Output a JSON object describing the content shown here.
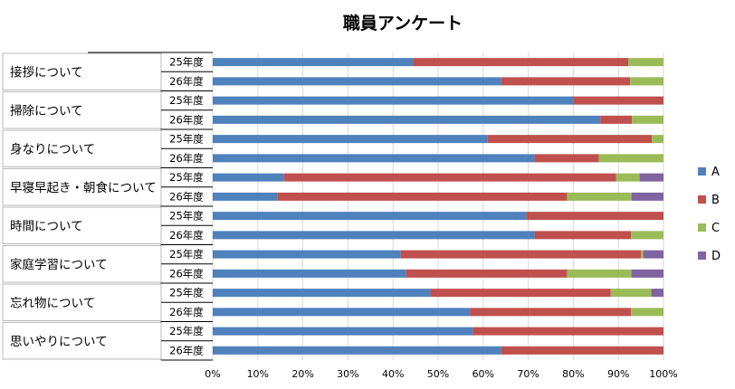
{
  "chart_data": {
    "type": "bar",
    "orientation": "horizontal",
    "stacked": "percent",
    "title": "職員アンケート",
    "categories": [
      "接拶について",
      "掃除について",
      "身なりについて",
      "早寝早起き・朝食について",
      "時間について",
      "家庭学習について",
      "忘れ物について",
      "思いやりについて"
    ],
    "sub_categories": [
      "25年度",
      "26年度"
    ],
    "series": [
      {
        "name": "A",
        "color": "#4F81BD",
        "values": [
          [
            44.4,
            0
          ],
          [
            64,
            0
          ],
          [
            80,
            0
          ],
          [
            86,
            0
          ],
          [
            60.9,
            0
          ],
          [
            71.4,
            0
          ],
          [
            15.8,
            0
          ],
          [
            14.3,
            0
          ],
          [
            69.6,
            0
          ],
          [
            71.4,
            0
          ],
          [
            41.7,
            0
          ],
          [
            42.9,
            0
          ],
          [
            48.3,
            0
          ],
          [
            57.1,
            0
          ],
          [
            57.7,
            0
          ],
          [
            64,
            0
          ]
        ]
      },
      {
        "name": "B",
        "color": "#C0504D",
        "values": [
          [
            47.8,
            0
          ],
          [
            28.6,
            0
          ],
          [
            20,
            0
          ],
          [
            7,
            0
          ],
          [
            36.5,
            0
          ],
          [
            14.3,
            0
          ],
          [
            73.7,
            0
          ],
          [
            64.3,
            0
          ],
          [
            30.4,
            0
          ],
          [
            21.4,
            0
          ],
          [
            53.3,
            0
          ],
          [
            35.7,
            0
          ],
          [
            40,
            0
          ],
          [
            35.7,
            0
          ],
          [
            42.3,
            0
          ],
          [
            36,
            0
          ]
        ]
      },
      {
        "name": "C",
        "color": "#9BBB59",
        "values": [
          [
            7.8,
            0
          ],
          [
            7.4,
            0
          ],
          [
            0,
            0
          ],
          [
            7,
            0
          ],
          [
            2.6,
            0
          ],
          [
            14.3,
            0
          ],
          [
            5.2,
            0
          ],
          [
            14.3,
            0
          ],
          [
            0,
            0
          ],
          [
            7.2,
            0
          ],
          [
            0.5,
            0
          ],
          [
            14.3,
            0
          ],
          [
            9,
            0
          ],
          [
            7.2,
            0
          ],
          [
            0,
            0
          ],
          [
            0,
            0
          ]
        ]
      },
      {
        "name": "D",
        "color": "#8064A2",
        "values": [
          [
            0,
            0
          ],
          [
            0,
            0
          ],
          [
            0,
            0
          ],
          [
            0,
            0
          ],
          [
            0,
            0
          ],
          [
            0,
            0
          ],
          [
            5.3,
            0
          ],
          [
            7.1,
            0
          ],
          [
            0,
            0
          ],
          [
            0,
            0
          ],
          [
            4.5,
            0
          ],
          [
            7.1,
            0
          ],
          [
            2.7,
            0
          ],
          [
            0,
            0
          ],
          [
            0,
            0
          ],
          [
            0,
            0
          ]
        ]
      }
    ],
    "xlim": [
      0,
      100
    ],
    "x_ticks": [
      "0%",
      "10%",
      "20%",
      "30%",
      "40%",
      "50%",
      "60%",
      "70%",
      "80%",
      "90%",
      "100%"
    ],
    "grid": true,
    "legend": "right"
  }
}
